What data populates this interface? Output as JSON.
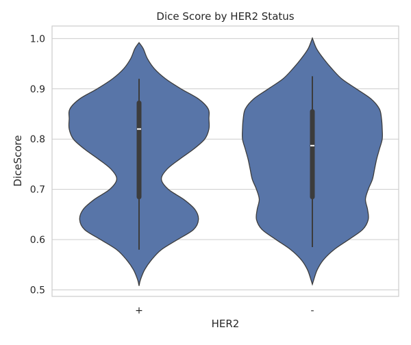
{
  "chart_data": {
    "type": "violin",
    "title": "Dice Score by HER2 Status",
    "xlabel": "HER2",
    "ylabel": "DiceScore",
    "ylim": [
      0.487,
      1.025
    ],
    "yticks": [
      0.5,
      0.6,
      0.7,
      0.8,
      0.9,
      1.0
    ],
    "ytick_labels": [
      "0.5",
      "0.6",
      "0.7",
      "0.8",
      "0.9",
      "1.0"
    ],
    "grid": true,
    "fill_color": "#5875a8",
    "edge_color": "#3c3c3c",
    "categories": [
      "+",
      "-"
    ],
    "violins": [
      {
        "category": "+",
        "min": 0.58,
        "q1": 0.685,
        "median": 0.82,
        "q3": 0.872,
        "max": 0.92,
        "density": [
          [
            0.508,
            0.0
          ],
          [
            0.52,
            0.02
          ],
          [
            0.54,
            0.08
          ],
          [
            0.56,
            0.18
          ],
          [
            0.58,
            0.32
          ],
          [
            0.6,
            0.55
          ],
          [
            0.62,
            0.78
          ],
          [
            0.64,
            0.85
          ],
          [
            0.66,
            0.8
          ],
          [
            0.68,
            0.64
          ],
          [
            0.7,
            0.42
          ],
          [
            0.72,
            0.32
          ],
          [
            0.74,
            0.4
          ],
          [
            0.76,
            0.58
          ],
          [
            0.78,
            0.78
          ],
          [
            0.8,
            0.94
          ],
          [
            0.82,
            1.0
          ],
          [
            0.84,
            1.0
          ],
          [
            0.86,
            0.99
          ],
          [
            0.88,
            0.85
          ],
          [
            0.9,
            0.6
          ],
          [
            0.92,
            0.38
          ],
          [
            0.94,
            0.22
          ],
          [
            0.96,
            0.12
          ],
          [
            0.98,
            0.06
          ],
          [
            0.992,
            0.0
          ]
        ]
      },
      {
        "category": "-",
        "min": 0.585,
        "q1": 0.685,
        "median": 0.787,
        "q3": 0.855,
        "max": 0.925,
        "density": [
          [
            0.511,
            0.0
          ],
          [
            0.52,
            0.02
          ],
          [
            0.54,
            0.07
          ],
          [
            0.56,
            0.16
          ],
          [
            0.58,
            0.31
          ],
          [
            0.6,
            0.52
          ],
          [
            0.62,
            0.72
          ],
          [
            0.64,
            0.8
          ],
          [
            0.66,
            0.79
          ],
          [
            0.68,
            0.76
          ],
          [
            0.7,
            0.8
          ],
          [
            0.72,
            0.86
          ],
          [
            0.74,
            0.89
          ],
          [
            0.76,
            0.92
          ],
          [
            0.78,
            0.96
          ],
          [
            0.8,
            1.0
          ],
          [
            0.82,
            1.0
          ],
          [
            0.84,
            0.99
          ],
          [
            0.86,
            0.96
          ],
          [
            0.88,
            0.84
          ],
          [
            0.9,
            0.63
          ],
          [
            0.92,
            0.42
          ],
          [
            0.94,
            0.28
          ],
          [
            0.96,
            0.16
          ],
          [
            0.98,
            0.06
          ],
          [
            1.001,
            0.0
          ]
        ]
      }
    ]
  }
}
